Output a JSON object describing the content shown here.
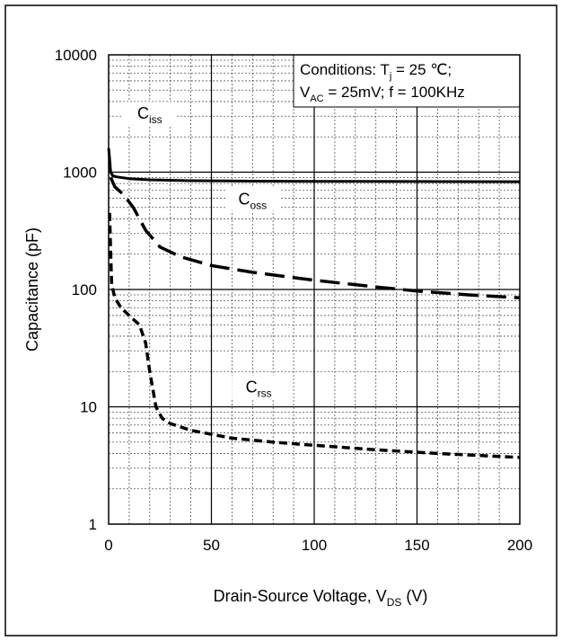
{
  "chart_data": {
    "type": "line",
    "xlabel": {
      "main": "Drain-Source Voltage, V",
      "sub": "DS",
      "tail": " (V)"
    },
    "ylabel": "Capacitance (pF)",
    "x_ticks": [
      "0",
      "50",
      "100",
      "150",
      "200"
    ],
    "y_ticks": [
      "1",
      "10",
      "100",
      "1000",
      "10000"
    ],
    "xlim": [
      0,
      200
    ],
    "ylim": [
      1,
      10000
    ],
    "y_scale": "log",
    "grid": true,
    "conditions": {
      "line1": {
        "pre": "Conditions:  T",
        "sub": "j",
        "post": " = 25 ℃;"
      },
      "line2": {
        "pre": "V",
        "sub": "AC",
        "post": " = 25mV;  f = 100KHz"
      }
    },
    "series": [
      {
        "name": "Ciss",
        "label_main": "C",
        "label_sub": "iss",
        "label_at": [
          20,
          3000
        ],
        "style": "solid",
        "points": [
          [
            0,
            1600
          ],
          [
            0.5,
            1300
          ],
          [
            1,
            1000
          ],
          [
            2,
            930
          ],
          [
            4,
            910
          ],
          [
            10,
            880
          ],
          [
            20,
            860
          ],
          [
            40,
            845
          ],
          [
            70,
            838
          ],
          [
            100,
            835
          ],
          [
            150,
            832
          ],
          [
            200,
            830
          ]
        ]
      },
      {
        "name": "Coss",
        "label_main": "C",
        "label_sub": "oss",
        "label_at": [
          70,
          560
        ],
        "style": "longdash",
        "points": [
          [
            1,
            900
          ],
          [
            3,
            750
          ],
          [
            7,
            650
          ],
          [
            12,
            500
          ],
          [
            18,
            320
          ],
          [
            25,
            230
          ],
          [
            35,
            190
          ],
          [
            50,
            160
          ],
          [
            70,
            140
          ],
          [
            100,
            120
          ],
          [
            130,
            105
          ],
          [
            150,
            97
          ],
          [
            175,
            90
          ],
          [
            200,
            85
          ]
        ]
      },
      {
        "name": "Crss",
        "label_main": "C",
        "label_sub": "rss",
        "label_at": [
          73,
          14
        ],
        "style": "shortdash",
        "points": [
          [
            0.5,
            450
          ],
          [
            1,
            200
          ],
          [
            1.5,
            110
          ],
          [
            3,
            85
          ],
          [
            6,
            70
          ],
          [
            10,
            60
          ],
          [
            15,
            50
          ],
          [
            18,
            35
          ],
          [
            20,
            20
          ],
          [
            23,
            10
          ],
          [
            26,
            8
          ],
          [
            30,
            7.2
          ],
          [
            40,
            6.3
          ],
          [
            60,
            5.4
          ],
          [
            80,
            5
          ],
          [
            100,
            4.7
          ],
          [
            130,
            4.3
          ],
          [
            160,
            4
          ],
          [
            200,
            3.7
          ]
        ]
      }
    ]
  }
}
